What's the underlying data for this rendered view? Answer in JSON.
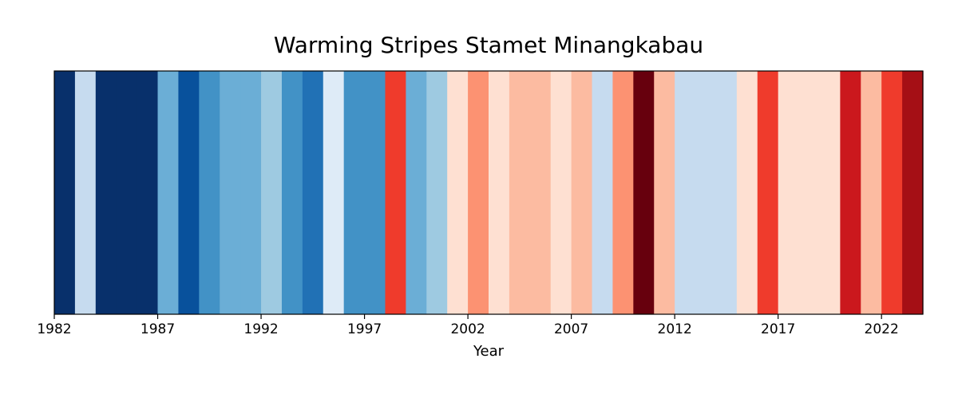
{
  "chart_data": {
    "type": "heatmap",
    "title": "Warming Stripes Stamet Minangkabau",
    "xlabel": "Year",
    "ylabel": "",
    "xlim": [
      1982,
      2024
    ],
    "x_ticks": [
      1982,
      1987,
      1992,
      1997,
      2002,
      2007,
      2012,
      2017,
      2022
    ],
    "stripes": [
      {
        "year": 1982,
        "color": "#08306b"
      },
      {
        "year": 1983,
        "color": "#c6dbef"
      },
      {
        "year": 1984,
        "color": "#08306b"
      },
      {
        "year": 1985,
        "color": "#08306b"
      },
      {
        "year": 1986,
        "color": "#08306b"
      },
      {
        "year": 1987,
        "color": "#6baed6"
      },
      {
        "year": 1988,
        "color": "#08519c"
      },
      {
        "year": 1989,
        "color": "#4292c6"
      },
      {
        "year": 1990,
        "color": "#6baed6"
      },
      {
        "year": 1991,
        "color": "#6baed6"
      },
      {
        "year": 1992,
        "color": "#9ecae1"
      },
      {
        "year": 1993,
        "color": "#4292c6"
      },
      {
        "year": 1994,
        "color": "#2171b5"
      },
      {
        "year": 1995,
        "color": "#deebf7"
      },
      {
        "year": 1996,
        "color": "#4292c6"
      },
      {
        "year": 1997,
        "color": "#4292c6"
      },
      {
        "year": 1998,
        "color": "#ef3b2c"
      },
      {
        "year": 1999,
        "color": "#6baed6"
      },
      {
        "year": 2000,
        "color": "#9ecae1"
      },
      {
        "year": 2001,
        "color": "#fee0d2"
      },
      {
        "year": 2002,
        "color": "#fc9272"
      },
      {
        "year": 2003,
        "color": "#fee0d2"
      },
      {
        "year": 2004,
        "color": "#fcbba1"
      },
      {
        "year": 2005,
        "color": "#fcbba1"
      },
      {
        "year": 2006,
        "color": "#fee0d2"
      },
      {
        "year": 2007,
        "color": "#fcbba1"
      },
      {
        "year": 2008,
        "color": "#c6dbef"
      },
      {
        "year": 2009,
        "color": "#fc9272"
      },
      {
        "year": 2010,
        "color": "#67000d"
      },
      {
        "year": 2011,
        "color": "#fcbba1"
      },
      {
        "year": 2012,
        "color": "#c6dbef"
      },
      {
        "year": 2013,
        "color": "#c6dbef"
      },
      {
        "year": 2014,
        "color": "#c6dbef"
      },
      {
        "year": 2015,
        "color": "#fee0d2"
      },
      {
        "year": 2016,
        "color": "#ef3b2c"
      },
      {
        "year": 2017,
        "color": "#fee0d2"
      },
      {
        "year": 2018,
        "color": "#fee0d2"
      },
      {
        "year": 2019,
        "color": "#fee0d2"
      },
      {
        "year": 2020,
        "color": "#cb181d"
      },
      {
        "year": 2021,
        "color": "#fcbba1"
      },
      {
        "year": 2022,
        "color": "#ef3b2c"
      },
      {
        "year": 2023,
        "color": "#a50f15"
      }
    ]
  }
}
